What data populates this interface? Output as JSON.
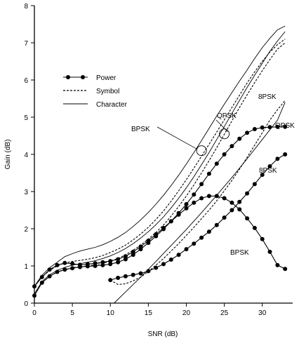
{
  "chart_data": {
    "type": "line",
    "title": "",
    "xlabel": "SNR (dB)",
    "ylabel": "Gain (dB)",
    "xlim": [
      0,
      34
    ],
    "ylim": [
      0,
      8
    ],
    "x_ticks": [
      0,
      5,
      10,
      15,
      20,
      25,
      30
    ],
    "y_ticks": [
      0,
      1,
      2,
      3,
      4,
      5,
      6,
      7,
      8
    ],
    "grid": false,
    "legend_position": "upper-left",
    "legend": [
      {
        "label": "Power",
        "style": "marker"
      },
      {
        "label": "Symbol",
        "style": "dashed"
      },
      {
        "label": "Character",
        "style": "solid"
      }
    ],
    "series": [
      {
        "modulation": "BPSK",
        "metric": "Power",
        "style": "marker",
        "x": [
          0,
          1,
          2,
          3,
          4,
          5,
          6,
          7,
          8,
          9,
          10,
          11,
          12,
          13,
          14,
          15,
          16,
          17,
          18,
          19,
          20,
          21,
          22,
          23,
          24,
          25,
          26,
          27,
          28,
          29,
          30,
          31,
          32,
          33
        ],
        "y": [
          0.45,
          0.7,
          0.9,
          1.02,
          1.08,
          1.06,
          1.03,
          1.05,
          1.07,
          1.1,
          1.13,
          1.18,
          1.26,
          1.38,
          1.52,
          1.68,
          1.85,
          2.02,
          2.2,
          2.38,
          2.55,
          2.7,
          2.82,
          2.88,
          2.88,
          2.82,
          2.7,
          2.52,
          2.28,
          2.02,
          1.72,
          1.38,
          1.02,
          0.92
        ]
      },
      {
        "modulation": "QPSK",
        "metric": "Power",
        "style": "marker",
        "x": [
          0,
          1,
          2,
          3,
          4,
          5,
          6,
          7,
          8,
          9,
          10,
          11,
          12,
          13,
          14,
          15,
          16,
          17,
          18,
          19,
          20,
          21,
          22,
          23,
          24,
          25,
          26,
          27,
          28,
          29,
          30,
          31,
          32,
          33
        ],
        "y": [
          0.2,
          0.55,
          0.72,
          0.84,
          0.9,
          0.94,
          0.97,
          0.99,
          1.0,
          1.02,
          1.05,
          1.1,
          1.18,
          1.3,
          1.45,
          1.62,
          1.8,
          1.99,
          2.2,
          2.42,
          2.66,
          2.92,
          3.2,
          3.48,
          3.75,
          4.0,
          4.22,
          4.42,
          4.58,
          4.68,
          4.72,
          4.73,
          4.74,
          4.74
        ]
      },
      {
        "modulation": "8PSK",
        "metric": "Power",
        "style": "marker",
        "x": [
          10,
          11,
          12,
          13,
          14,
          15,
          16,
          17,
          18,
          19,
          20,
          21,
          22,
          23,
          24,
          25,
          26,
          27,
          28,
          29,
          30,
          31,
          32,
          33
        ],
        "y": [
          0.62,
          0.68,
          0.72,
          0.76,
          0.8,
          0.86,
          0.95,
          1.05,
          1.17,
          1.3,
          1.45,
          1.6,
          1.76,
          1.92,
          2.1,
          2.3,
          2.5,
          2.72,
          2.95,
          3.2,
          3.45,
          3.68,
          3.88,
          4.0
        ]
      },
      {
        "modulation": "BPSK",
        "metric": "Symbol",
        "style": "dashed",
        "x": [
          0,
          1,
          2,
          3,
          4,
          5,
          6,
          7,
          8,
          9,
          10,
          11,
          12,
          13,
          14,
          15,
          16,
          17,
          18,
          19,
          20,
          21,
          22,
          23,
          24,
          25,
          26,
          27,
          28,
          29,
          30,
          31,
          32,
          33
        ],
        "y": [
          0.45,
          0.7,
          0.88,
          1.0,
          1.08,
          1.12,
          1.15,
          1.18,
          1.22,
          1.28,
          1.36,
          1.45,
          1.56,
          1.7,
          1.86,
          2.04,
          2.25,
          2.48,
          2.74,
          3.02,
          3.32,
          3.63,
          3.95,
          4.27,
          4.6,
          4.93,
          5.26,
          5.59,
          5.92,
          6.22,
          6.5,
          6.75,
          6.95,
          7.1
        ]
      },
      {
        "modulation": "QPSK",
        "metric": "Symbol",
        "style": "dashed",
        "x": [
          0,
          1,
          2,
          3,
          4,
          5,
          6,
          7,
          8,
          9,
          10,
          11,
          12,
          13,
          14,
          15,
          16,
          17,
          18,
          19,
          20,
          21,
          22,
          23,
          24,
          25,
          26,
          27,
          28,
          29,
          30,
          31,
          32,
          33
        ],
        "y": [
          0.25,
          0.55,
          0.72,
          0.83,
          0.9,
          0.95,
          0.98,
          1.0,
          1.03,
          1.07,
          1.13,
          1.2,
          1.3,
          1.42,
          1.56,
          1.72,
          1.9,
          2.1,
          2.34,
          2.6,
          2.88,
          3.18,
          3.5,
          3.83,
          4.18,
          4.54,
          4.9,
          5.26,
          5.6,
          5.93,
          6.25,
          6.55,
          6.83,
          7.0
        ]
      },
      {
        "modulation": "8PSK",
        "metric": "Symbol",
        "style": "dashed",
        "x": [
          10,
          11,
          12,
          13,
          14,
          15,
          16,
          17,
          18,
          19,
          20,
          21,
          22,
          23,
          24,
          25,
          26,
          27,
          28,
          29,
          30,
          31,
          32,
          33
        ],
        "y": [
          0.62,
          0.5,
          0.52,
          0.6,
          0.7,
          0.85,
          1.02,
          1.2,
          1.4,
          1.6,
          1.82,
          2.04,
          2.27,
          2.5,
          2.75,
          3.02,
          3.3,
          3.6,
          3.92,
          4.25,
          4.58,
          4.92,
          5.2,
          5.45
        ]
      },
      {
        "modulation": "BPSK",
        "metric": "Character",
        "style": "solid",
        "x": [
          0,
          1,
          2,
          3,
          4,
          5,
          6,
          7,
          8,
          9,
          10,
          11,
          12,
          13,
          14,
          15,
          16,
          17,
          18,
          19,
          20,
          21,
          22,
          23,
          24,
          25,
          26,
          27,
          28,
          29,
          30,
          31,
          32,
          33
        ],
        "y": [
          0.45,
          0.75,
          0.95,
          1.1,
          1.25,
          1.33,
          1.4,
          1.45,
          1.5,
          1.57,
          1.66,
          1.77,
          1.9,
          2.06,
          2.24,
          2.44,
          2.66,
          2.9,
          3.16,
          3.44,
          3.74,
          4.05,
          4.37,
          4.7,
          5.03,
          5.35,
          5.66,
          5.97,
          6.27,
          6.58,
          6.87,
          7.12,
          7.35,
          7.45
        ]
      },
      {
        "modulation": "QPSK",
        "metric": "Character",
        "style": "solid",
        "x": [
          0,
          1,
          2,
          3,
          4,
          5,
          6,
          7,
          8,
          9,
          10,
          11,
          12,
          13,
          14,
          15,
          16,
          17,
          18,
          19,
          20,
          21,
          22,
          23,
          24,
          25,
          26,
          27,
          28,
          29,
          30,
          31,
          32,
          33
        ],
        "y": [
          0.25,
          0.58,
          0.76,
          0.88,
          0.96,
          1.02,
          1.06,
          1.1,
          1.14,
          1.2,
          1.27,
          1.36,
          1.47,
          1.6,
          1.75,
          1.92,
          2.11,
          2.32,
          2.56,
          2.82,
          3.1,
          3.4,
          3.72,
          4.05,
          4.4,
          4.75,
          5.1,
          5.45,
          5.8,
          6.13,
          6.45,
          6.77,
          7.05,
          7.3
        ]
      },
      {
        "modulation": "8PSK",
        "metric": "Character",
        "style": "solid",
        "x": [
          10.5,
          12,
          14,
          16,
          18,
          20,
          22,
          24,
          26,
          28,
          30,
          32,
          33
        ],
        "y": [
          0,
          0.3,
          0.7,
          1.12,
          1.55,
          1.98,
          2.43,
          2.9,
          3.38,
          3.88,
          4.4,
          4.92,
          5.4
        ]
      }
    ],
    "annotations": [
      {
        "text": "BPSK",
        "anchor_x": 22,
        "anchor_y": 4.1,
        "circled": true
      },
      {
        "text": "QPSK",
        "anchor_x": 25,
        "anchor_y": 4.55,
        "circled": true
      },
      {
        "text": "8PSK",
        "anchor_x": 32.5,
        "anchor_y": 5.35,
        "circled": false
      },
      {
        "text": "QPSK",
        "anchor_x": 33,
        "anchor_y": 4.74,
        "circled": false
      },
      {
        "text": "8PSK",
        "anchor_x": 31,
        "anchor_y": 3.55,
        "circled": false
      },
      {
        "text": "BPSK",
        "anchor_x": 27,
        "anchor_y": 2.2,
        "circled": false
      }
    ]
  }
}
